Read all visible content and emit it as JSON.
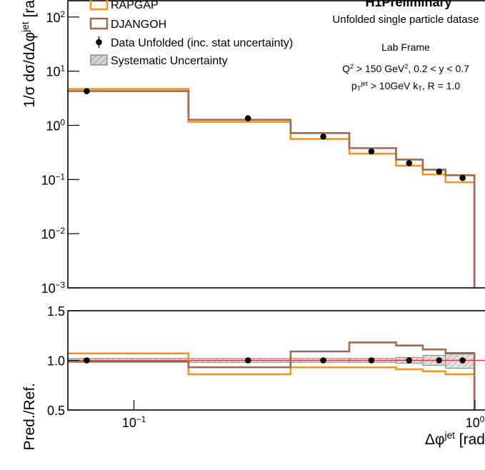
{
  "chart_data": [
    {
      "type": "histogram",
      "title": "H1Preliminary",
      "annotations": [
        [
          {
            "text": "Unfolded single particle datase"
          }
        ],
        [
          {
            "text": "Lab Frame"
          }
        ],
        [
          {
            "text": "Q"
          },
          {
            "text": "2",
            "shift": "sup"
          },
          {
            "text": " > 150 GeV"
          },
          {
            "text": "2",
            "shift": "sup"
          },
          {
            "text": ", 0.2 < y < 0.7"
          }
        ],
        [
          {
            "text": "p"
          },
          {
            "text": "T",
            "shift": "sub"
          },
          {
            "text": "jet",
            "shift": "sup"
          },
          {
            "text": " > 10GeV k"
          },
          {
            "text": "T",
            "shift": "sub"
          },
          {
            "text": ", R = 1.0"
          }
        ]
      ],
      "ylabel": [
        {
          "text": "1/σ dσ/dΔφ"
        },
        {
          "text": "jet",
          "shift": "sup"
        },
        {
          "text": " [ra"
        }
      ],
      "log_x": true,
      "log_y": true,
      "xlim": [
        0.064,
        1.07
      ],
      "ylim": [
        0.001,
        200
      ],
      "yticks": [
        {
          "value": 0.001,
          "label": "10",
          "exponent": "−3"
        },
        {
          "value": 0.01,
          "label": "10",
          "exponent": "−2"
        },
        {
          "value": 0.1,
          "label": "10",
          "exponent": "−1"
        },
        {
          "value": 1,
          "label": "10",
          "exponent": "0"
        },
        {
          "value": 10,
          "label": "10",
          "exponent": "1"
        },
        {
          "value": 100,
          "label": "10",
          "exponent": "2"
        }
      ],
      "bins": [
        0.064,
        0.1445,
        0.288,
        0.428,
        0.587,
        0.703,
        0.82,
        0.996
      ],
      "series": [
        {
          "name": "RAPGAP",
          "color": "#f7941d",
          "values": [
            4.7,
            1.16,
            0.56,
            0.3,
            0.18,
            0.124,
            0.089
          ]
        },
        {
          "name": "DJANGOH",
          "color": "#9b6a56",
          "values": [
            4.28,
            1.27,
            0.72,
            0.38,
            0.233,
            0.152,
            0.12
          ]
        }
      ],
      "points": {
        "name": "Data Unfolded (inc. stat uncertainty)",
        "color": "#000000",
        "x": [
          0.0727,
          0.216,
          0.359,
          0.497,
          0.641,
          0.785,
          0.92
        ],
        "values": [
          4.28,
          1.35,
          0.62,
          0.33,
          0.2,
          0.14,
          0.107
        ]
      },
      "band": {
        "name": "Systematic Uncertainty",
        "color": "#aaaaaa"
      }
    },
    {
      "type": "histogram",
      "xlabel": [
        {
          "text": "Δφ"
        },
        {
          "text": "jet",
          "shift": "sup"
        },
        {
          "text": " [rad"
        }
      ],
      "ylabel": [
        {
          "text": "Pred./Ref."
        }
      ],
      "log_x": true,
      "xlim": [
        0.064,
        1.07
      ],
      "ylim": [
        0.5,
        1.5
      ],
      "xticks": [
        {
          "value": 0.1,
          "label": "10",
          "exponent": "−1"
        },
        {
          "value": 1,
          "label": "10",
          "exponent": "0"
        }
      ],
      "yticks": [
        {
          "value": 0.5,
          "label": "0.5"
        },
        {
          "value": 1,
          "label": "1.0"
        },
        {
          "value": 1.5,
          "label": "1.5"
        }
      ],
      "bins": [
        0.064,
        0.1445,
        0.288,
        0.428,
        0.587,
        0.703,
        0.82,
        0.996
      ],
      "series": [
        {
          "color": "#f7941d",
          "values": [
            1.07,
            0.86,
            0.93,
            0.93,
            0.91,
            0.89,
            0.86
          ]
        },
        {
          "color": "#9b6a56",
          "values": [
            0.99,
            0.93,
            1.09,
            1.18,
            1.15,
            1.11,
            1.07
          ]
        }
      ],
      "points": {
        "color": "#000000",
        "x": [
          0.0727,
          0.216,
          0.359,
          0.497,
          0.641,
          0.785,
          0.92
        ],
        "values": [
          1,
          1,
          1,
          1,
          1,
          1,
          1
        ]
      },
      "band": {
        "color": "#aaaaaa",
        "values": [
          0.02,
          0.02,
          0.02,
          0.02,
          0.03,
          0.05,
          0.08
        ]
      },
      "reference_line": {
        "value": 1,
        "color": "#ff3333"
      }
    }
  ]
}
